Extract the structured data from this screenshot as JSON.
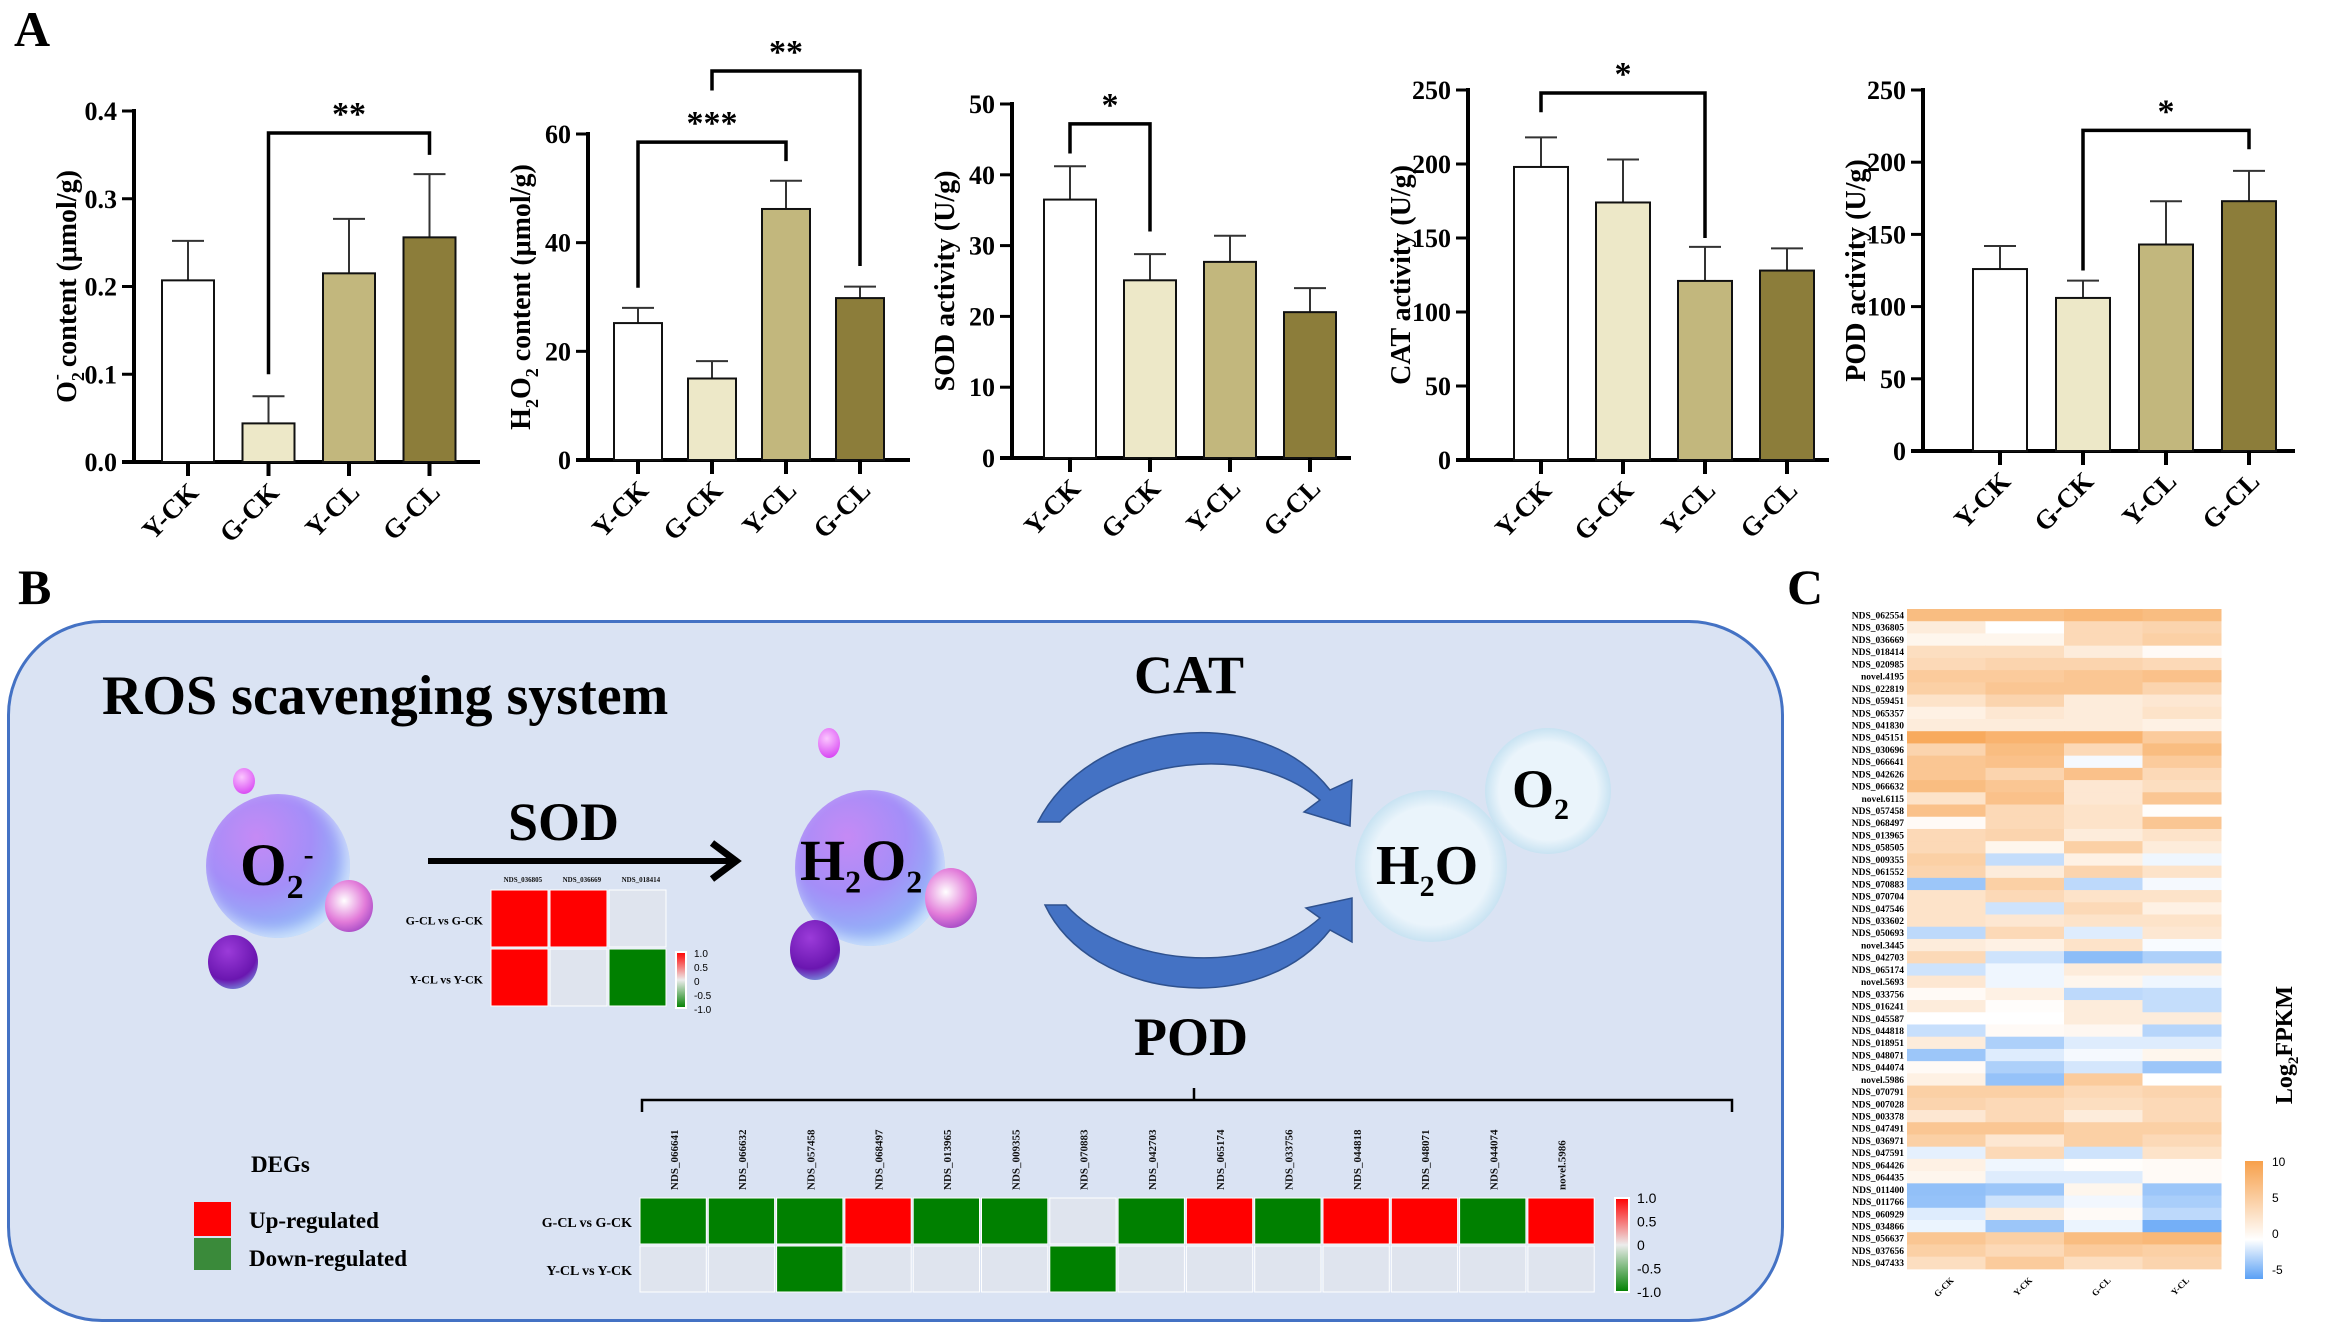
{
  "panels": {
    "a": "A",
    "b": "B",
    "c": "C"
  },
  "colors": {
    "Y-CK": "#ffffff",
    "G-CK": "#ede8c8",
    "Y-CL": "#c2b77d",
    "G-CL": "#8c7d3a",
    "up": "#ff0000",
    "down": "#008000",
    "none": "#dfe4ee",
    "heat_high": "#f7a04b",
    "heat_low": "#5aa0f5"
  },
  "chart_data": [
    {
      "type": "bar",
      "id": "o2",
      "ylabel": "O2- content (μmol/g)",
      "ylabel_parts": [
        "O",
        "2",
        "-",
        " content (μmol/g)"
      ],
      "categories": [
        "Y-CK",
        "G-CK",
        "Y-CL",
        "G-CL"
      ],
      "values": [
        0.207,
        0.044,
        0.215,
        0.256
      ],
      "errors": [
        0.045,
        0.031,
        0.062,
        0.072
      ],
      "ylim": [
        0,
        0.4
      ],
      "ticks": [
        "0.0",
        "0.1",
        "0.2",
        "0.3",
        "0.4"
      ],
      "tick_values": [
        0,
        0.1,
        0.2,
        0.3,
        0.4
      ],
      "significance": [
        {
          "from": 1,
          "to": 3,
          "label": "**",
          "top": 0.375,
          "left_end": 0.1,
          "right_end": 0.35
        }
      ]
    },
    {
      "type": "bar",
      "id": "h2o2",
      "ylabel": "H2O2 content (μmol/g)",
      "ylabel_parts": [
        "H",
        "2",
        "O",
        "2",
        " content (μmol/g)"
      ],
      "categories": [
        "Y-CK",
        "G-CK",
        "Y-CL",
        "G-CL"
      ],
      "values": [
        25.2,
        15.0,
        46.2,
        29.8
      ],
      "errors": [
        2.8,
        3.2,
        5.2,
        2.1
      ],
      "ylim": [
        0,
        60
      ],
      "ticks": [
        "0",
        "20",
        "40",
        "60"
      ],
      "tick_values": [
        0,
        20,
        40,
        60
      ],
      "significance": [
        {
          "from": 0,
          "to": 2,
          "label": "***",
          "top": 58.5,
          "left_end": 31.7,
          "right_end": 55
        },
        {
          "from": 1,
          "to": 3,
          "label": "**",
          "top": 71.6,
          "left_end": 68,
          "right_end": 35.7
        }
      ]
    },
    {
      "type": "bar",
      "id": "sod",
      "ylabel": "SOD activity (U/g)",
      "categories": [
        "Y-CK",
        "G-CK",
        "Y-CL",
        "G-CL"
      ],
      "values": [
        36.5,
        25.1,
        27.7,
        20.6
      ],
      "errors": [
        4.7,
        3.7,
        3.7,
        3.4
      ],
      "ylim": [
        0,
        50
      ],
      "ticks": [
        "0",
        "10",
        "20",
        "30",
        "40",
        "50"
      ],
      "tick_values": [
        0,
        10,
        20,
        30,
        40,
        50
      ],
      "significance": [
        {
          "from": 0,
          "to": 1,
          "label": "*",
          "top": 47.2,
          "left_end": 43,
          "right_end": 32
        }
      ]
    },
    {
      "type": "bar",
      "id": "cat",
      "ylabel": "CAT activity (U/g)",
      "categories": [
        "Y-CK",
        "G-CK",
        "Y-CL",
        "G-CL"
      ],
      "values": [
        198,
        174,
        121,
        128
      ],
      "errors": [
        20,
        29,
        23,
        15
      ],
      "ylim": [
        0,
        250
      ],
      "ticks": [
        "0",
        "50",
        "100",
        "150",
        "200",
        "250"
      ],
      "tick_values": [
        0,
        50,
        100,
        150,
        200,
        250
      ],
      "significance": [
        {
          "from": 0,
          "to": 2,
          "label": "*",
          "top": 248,
          "left_end": 235,
          "right_end": 150
        }
      ]
    },
    {
      "type": "bar",
      "id": "pod",
      "ylabel": "POD activity (U/g)",
      "categories": [
        "Y-CK",
        "G-CK",
        "Y-CL",
        "G-CL"
      ],
      "values": [
        126,
        106,
        143,
        173
      ],
      "errors": [
        16,
        12,
        30,
        21
      ],
      "ylim": [
        0,
        250
      ],
      "ticks": [
        "0",
        "50",
        "100",
        "150",
        "200",
        "250"
      ],
      "tick_values": [
        0,
        50,
        100,
        150,
        200,
        250
      ],
      "significance": [
        {
          "from": 1,
          "to": 3,
          "label": "*",
          "top": 222,
          "left_end": 125,
          "right_end": 209
        }
      ]
    },
    {
      "type": "heatmap",
      "id": "sod-degs",
      "columns": [
        "NDS_036805",
        "NDS_036669",
        "NDS_018414"
      ],
      "rows": [
        "G-CL vs G-CK",
        "Y-CL vs Y-CK"
      ],
      "values": [
        [
          1,
          1,
          0
        ],
        [
          1,
          0,
          -1
        ]
      ],
      "scale_ticks": [
        "1.0",
        "0.5",
        "0",
        "-0.5",
        "-1.0"
      ]
    },
    {
      "type": "heatmap",
      "id": "pod-degs",
      "columns": [
        "NDS_066641",
        "NDS_066632",
        "NDS_057458",
        "NDS_068497",
        "NDS_013965",
        "NDS_009355",
        "NDS_070883",
        "NDS_042703",
        "NDS_065174",
        "NDS_033756",
        "NDS_044818",
        "NDS_048071",
        "NDS_044074",
        "novel.5986"
      ],
      "rows": [
        "G-CL vs G-CK",
        "Y-CL vs Y-CK"
      ],
      "values": [
        [
          -1,
          -1,
          -1,
          1,
          -1,
          -1,
          0,
          -1,
          1,
          -1,
          1,
          1,
          -1,
          1
        ],
        [
          0,
          0,
          -1,
          0,
          0,
          0,
          -1,
          0,
          0,
          0,
          0,
          0,
          0,
          0
        ]
      ],
      "scale_ticks": [
        "1.0",
        "0.5",
        "0",
        "-0.5",
        "-1.0"
      ]
    },
    {
      "type": "heatmap",
      "id": "fpkm",
      "legend_title": "Log2FPKM",
      "legend_parts": [
        "Log",
        "2",
        "FPKM"
      ],
      "scale": [
        -5,
        10
      ],
      "scale_ticks": [
        "10",
        "5",
        "0",
        "-5"
      ],
      "columns": [
        "G-CK",
        "Y-CK",
        "G-CL",
        "Y-CL"
      ],
      "rows": [
        "NDS_062554",
        "NDS_036805",
        "NDS_036669",
        "NDS_018414",
        "NDS_020985",
        "novel.4195",
        "NDS_022819",
        "NDS_059451",
        "NDS_065357",
        "NDS_041830",
        "NDS_045151",
        "NDS_030696",
        "NDS_066641",
        "NDS_042626",
        "NDS_066632",
        "novel.6115",
        "NDS_057458",
        "NDS_068497",
        "NDS_013965",
        "NDS_058505",
        "NDS_009355",
        "NDS_061552",
        "NDS_070883",
        "NDS_070704",
        "NDS_047546",
        "NDS_033602",
        "NDS_050693",
        "novel.3445",
        "NDS_042703",
        "NDS_065174",
        "novel.5693",
        "NDS_033756",
        "NDS_016241",
        "NDS_045587",
        "NDS_044818",
        "NDS_018951",
        "NDS_048071",
        "NDS_044074",
        "novel.5986",
        "NDS_070791",
        "NDS_007028",
        "NDS_003378",
        "NDS_047491",
        "NDS_036971",
        "NDS_047591",
        "NDS_064426",
        "NDS_064435",
        "NDS_011400",
        "NDS_011766",
        "NDS_060929",
        "NDS_034866",
        "NDS_056637",
        "NDS_037656",
        "NDS_047433"
      ],
      "values": [
        [
          7,
          7,
          7.5,
          7
        ],
        [
          2,
          0,
          4,
          4.5
        ],
        [
          1,
          1,
          4,
          5
        ],
        [
          3.5,
          3.5,
          2,
          0.5
        ],
        [
          4,
          4.5,
          4.5,
          4
        ],
        [
          5.5,
          5.5,
          6,
          6.5
        ],
        [
          5,
          6,
          6,
          4.5
        ],
        [
          3,
          4.5,
          2,
          2.5
        ],
        [
          1.5,
          2.5,
          2,
          3
        ],
        [
          2,
          2,
          2,
          1.5
        ],
        [
          9,
          8,
          8,
          5.5
        ],
        [
          4.5,
          7,
          4,
          7
        ],
        [
          6,
          6.5,
          -0.3,
          5.5
        ],
        [
          6,
          4.5,
          6.5,
          4
        ],
        [
          7,
          6,
          2.5,
          3.5
        ],
        [
          3,
          6.5,
          2.5,
          6
        ],
        [
          6.5,
          4,
          3,
          0.2
        ],
        [
          0.5,
          4,
          3,
          6
        ],
        [
          4,
          4.5,
          2,
          3
        ],
        [
          4,
          1,
          5,
          2
        ],
        [
          5,
          -1.8,
          1.5,
          -0.5
        ],
        [
          4.5,
          2,
          4.5,
          3
        ],
        [
          -3,
          5,
          -2,
          -0.3
        ],
        [
          3,
          4,
          3,
          3
        ],
        [
          3,
          -1.5,
          4,
          1.5
        ],
        [
          3,
          2.5,
          3,
          3
        ],
        [
          -2,
          4,
          -1,
          2.5
        ],
        [
          2,
          1.5,
          3,
          -0.2
        ],
        [
          4,
          -1.5,
          -3.5,
          -2.5
        ],
        [
          -1.5,
          -0.5,
          2,
          2
        ],
        [
          2.5,
          -0.5,
          1,
          -0.5
        ],
        [
          0.5,
          1.5,
          -2,
          -1.8
        ],
        [
          2,
          0.2,
          2,
          -1.8
        ],
        [
          0,
          0,
          2,
          2
        ],
        [
          -1.7,
          0.5,
          0.8,
          -2.2
        ],
        [
          2,
          -2.5,
          -1,
          -1
        ],
        [
          -3,
          -1,
          -0.3,
          1
        ],
        [
          0.5,
          -2.5,
          -1.3,
          -3
        ],
        [
          1.5,
          -3.2,
          5.5,
          0
        ],
        [
          5,
          5,
          4,
          4.5
        ],
        [
          4.5,
          4,
          3.5,
          4
        ],
        [
          2.5,
          4,
          2,
          4
        ],
        [
          6,
          6,
          5,
          5
        ],
        [
          5,
          2.5,
          5,
          4
        ],
        [
          -0.8,
          4,
          -1.5,
          3
        ],
        [
          1.5,
          -0.5,
          0.2,
          0.5
        ],
        [
          1,
          -1,
          -1,
          0.5
        ],
        [
          -3.3,
          -3,
          1,
          -3
        ],
        [
          -3.2,
          -1.5,
          -0.4,
          -2.6
        ],
        [
          -1,
          2,
          0.5,
          -2
        ],
        [
          -0.6,
          -3,
          -0.6,
          -4.2
        ],
        [
          6,
          5,
          7,
          7.5
        ],
        [
          5,
          4,
          5.5,
          5
        ],
        [
          3.5,
          5.5,
          3.5,
          4.5
        ]
      ]
    }
  ],
  "diagram": {
    "title": "ROS scavenging system",
    "o2_minus": {
      "base": "O",
      "sub": "2",
      "sup": "-"
    },
    "h2o2": {
      "p1": "H",
      "s1": "2",
      "p2": "O",
      "s2": "2"
    },
    "h2o": {
      "p1": "H",
      "s1": "2",
      "p2": "O"
    },
    "o2": {
      "p1": "O",
      "s1": "2"
    },
    "enzymes": {
      "sod": "SOD",
      "cat": "CAT",
      "pod": "POD"
    },
    "legend": {
      "title": "DEGs",
      "up": "Up-regulated",
      "down": "Down-regulated"
    }
  }
}
